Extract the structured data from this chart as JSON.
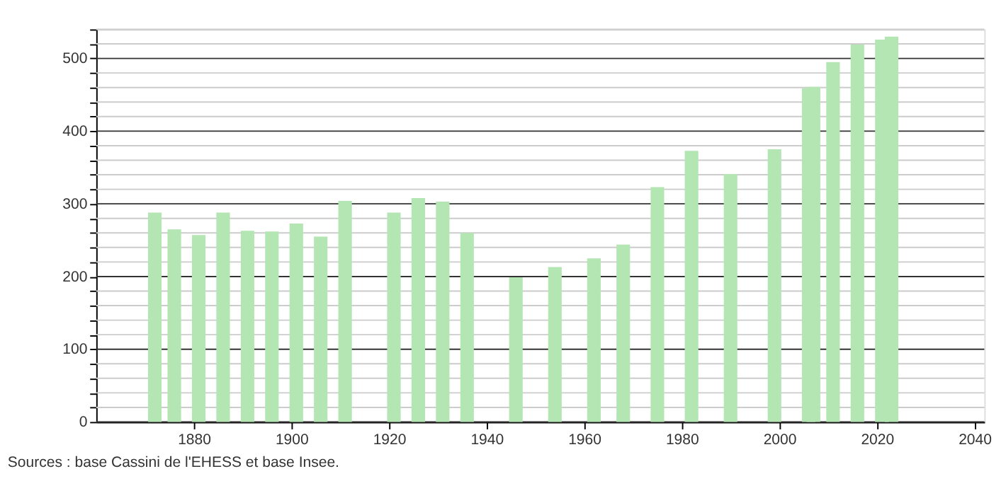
{
  "chart_data": {
    "type": "bar",
    "x": [
      1872,
      1876,
      1881,
      1886,
      1891,
      1896,
      1901,
      1906,
      1911,
      1921,
      1926,
      1931,
      1936,
      1946,
      1954,
      1962,
      1968,
      1975,
      1982,
      1990,
      1999,
      2006,
      2007,
      2011,
      2016,
      2021,
      2023
    ],
    "values": [
      288,
      265,
      257,
      288,
      263,
      262,
      273,
      255,
      304,
      288,
      308,
      303,
      260,
      199,
      213,
      225,
      244,
      323,
      373,
      341,
      375,
      459,
      461,
      495,
      519,
      526,
      530
    ],
    "color": "#b3e6b3",
    "xlim": [
      1860,
      2042
    ],
    "xticks": [
      1880,
      1900,
      1920,
      1940,
      1960,
      1980,
      2000,
      2020,
      2040
    ],
    "ylim": [
      0,
      540
    ],
    "yticks": [
      0,
      {
        "value": 20,
        "label": null
      },
      {
        "value": 40,
        "label": null
      },
      {
        "value": 60,
        "label": null
      },
      {
        "value": 80,
        "label": null
      },
      100,
      {
        "value": 120,
        "label": null
      },
      {
        "value": 140,
        "label": null
      },
      {
        "value": 160,
        "label": null
      },
      {
        "value": 180,
        "label": null
      },
      200,
      {
        "value": 220,
        "label": null
      },
      {
        "value": 240,
        "label": null
      },
      {
        "value": 260,
        "label": null
      },
      {
        "value": 280,
        "label": null
      },
      300,
      {
        "value": 320,
        "label": null
      },
      {
        "value": 340,
        "label": null
      },
      {
        "value": 360,
        "label": null
      },
      {
        "value": 380,
        "label": null
      },
      400,
      {
        "value": 420,
        "label": null
      },
      {
        "value": 440,
        "label": null
      },
      {
        "value": 460,
        "label": null
      },
      {
        "value": 480,
        "label": null
      },
      500,
      {
        "value": 520,
        "label": null
      },
      {
        "value": 540,
        "label": null
      }
    ],
    "grid": "y",
    "annotations": [
      "Sources : base Cassini de l'EHESS et base Insee."
    ]
  }
}
